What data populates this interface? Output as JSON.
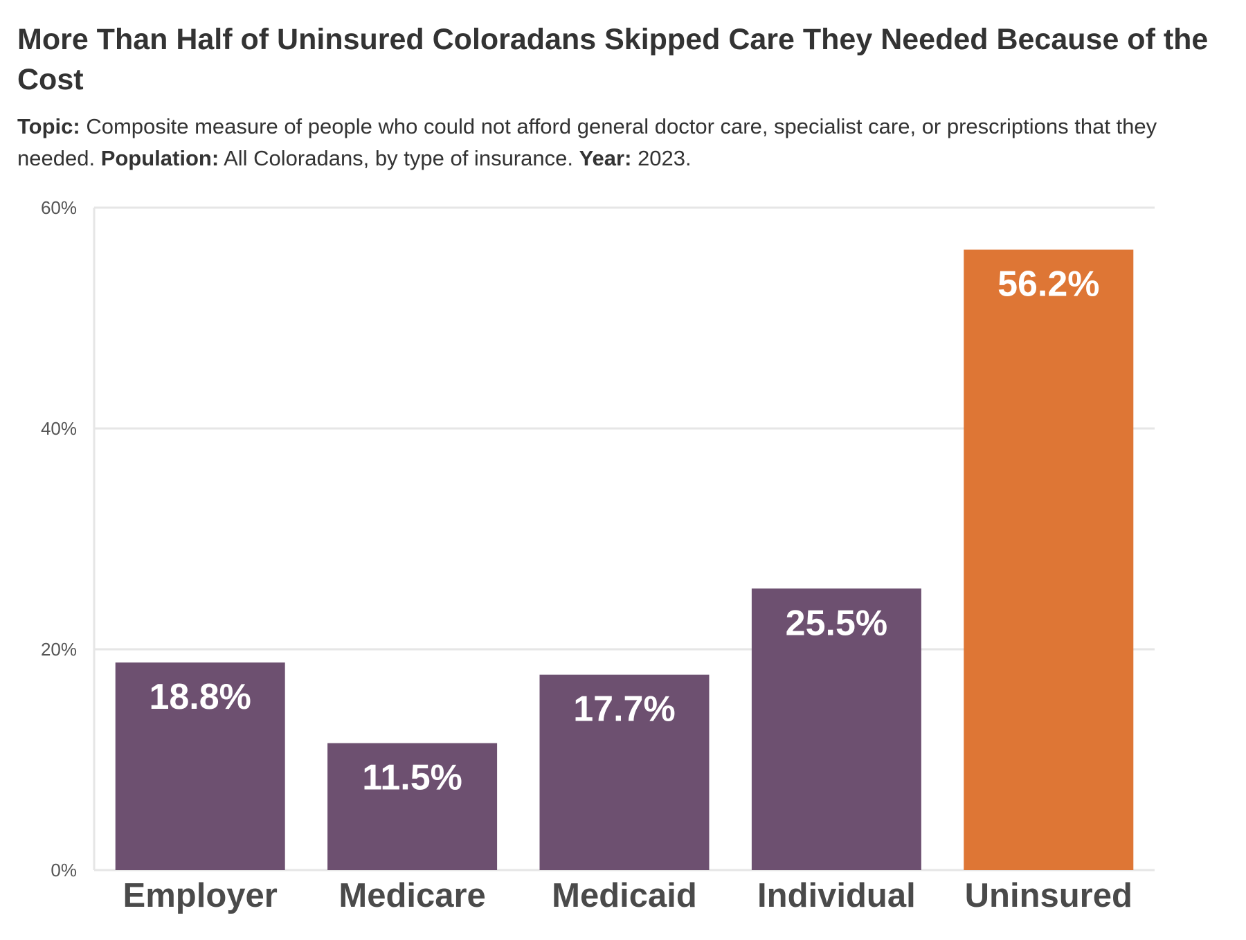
{
  "header": {
    "title": "More Than Half of Uninsured Coloradans Skipped Care They Needed Because of the Cost",
    "topic_label": "Topic:",
    "topic_text": "Composite measure of people who could not afford general doctor care, specialist care, or prescriptions that they needed.",
    "population_label": "Population:",
    "population_text": "All Coloradans, by type of insurance.",
    "year_label": "Year:",
    "year_text": "2023."
  },
  "chart_data": {
    "type": "bar",
    "title": "More Than Half of Uninsured Coloradans Skipped Care They Needed Because of the Cost",
    "categories": [
      "Employer",
      "Medicare",
      "Medicaid",
      "Individual",
      "Uninsured"
    ],
    "values": [
      18.8,
      11.5,
      17.7,
      25.5,
      56.2
    ],
    "value_labels": [
      "18.8%",
      "11.5%",
      "17.7%",
      "25.5%",
      "56.2%"
    ],
    "bar_colors": [
      "#6d5070",
      "#6d5070",
      "#6d5070",
      "#6d5070",
      "#de7635"
    ],
    "ylim": [
      0,
      60
    ],
    "yticks": [
      0,
      20,
      40,
      60
    ],
    "ytick_labels": [
      "0%",
      "20%",
      "40%",
      "60%"
    ],
    "xlabel": "",
    "ylabel": "",
    "grid": true,
    "legend": "none"
  }
}
